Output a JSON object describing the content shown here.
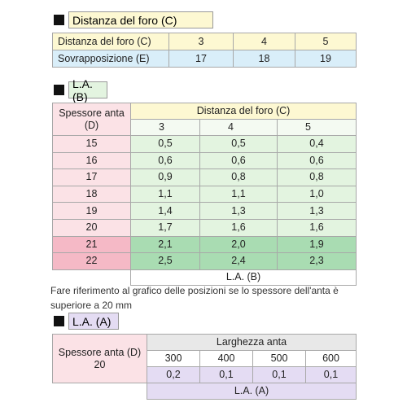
{
  "sections": [
    {
      "title": "Distanza del foro (C)",
      "table": {
        "rows": [
          [
            "Distanza del foro (C)",
            "3",
            "4",
            "5"
          ],
          [
            "Sovrapposizione (E)",
            "17",
            "18",
            "19"
          ]
        ]
      }
    },
    {
      "title": "L.A. (B)",
      "table": {
        "row_header": "Spessore anta (D)",
        "column_header": "Distanza del foro (C)",
        "columns": [
          "3",
          "4",
          "5"
        ],
        "rows": [
          {
            "label": "15",
            "values": [
              "0,5",
              "0,5",
              "0,4"
            ]
          },
          {
            "label": "16",
            "values": [
              "0,6",
              "0,6",
              "0,6"
            ]
          },
          {
            "label": "17",
            "values": [
              "0,9",
              "0,8",
              "0,8"
            ]
          },
          {
            "label": "18",
            "values": [
              "1,1",
              "1,1",
              "1,0"
            ]
          },
          {
            "label": "19",
            "values": [
              "1,4",
              "1,3",
              "1,3"
            ]
          },
          {
            "label": "20",
            "values": [
              "1,7",
              "1,6",
              "1,6"
            ]
          },
          {
            "label": "21",
            "values": [
              "2,1",
              "2,0",
              "1,9"
            ]
          },
          {
            "label": "22",
            "values": [
              "2,5",
              "2,4",
              "2,3"
            ]
          }
        ],
        "footer": "L.A. (B)"
      },
      "note": [
        "Fare riferimento al grafico delle posizioni se lo spessore dell'anta è",
        "superiore a 20 mm"
      ]
    },
    {
      "title": "L.A. (A)",
      "table": {
        "row_header": "Spessore anta (D)",
        "row_label": "20",
        "column_header": "Larghezza anta",
        "columns": [
          "300",
          "400",
          "500",
          "600"
        ],
        "values": [
          "0,2",
          "0,1",
          "0,1",
          "0,1"
        ],
        "footer": "L.A. (A)"
      }
    }
  ]
}
